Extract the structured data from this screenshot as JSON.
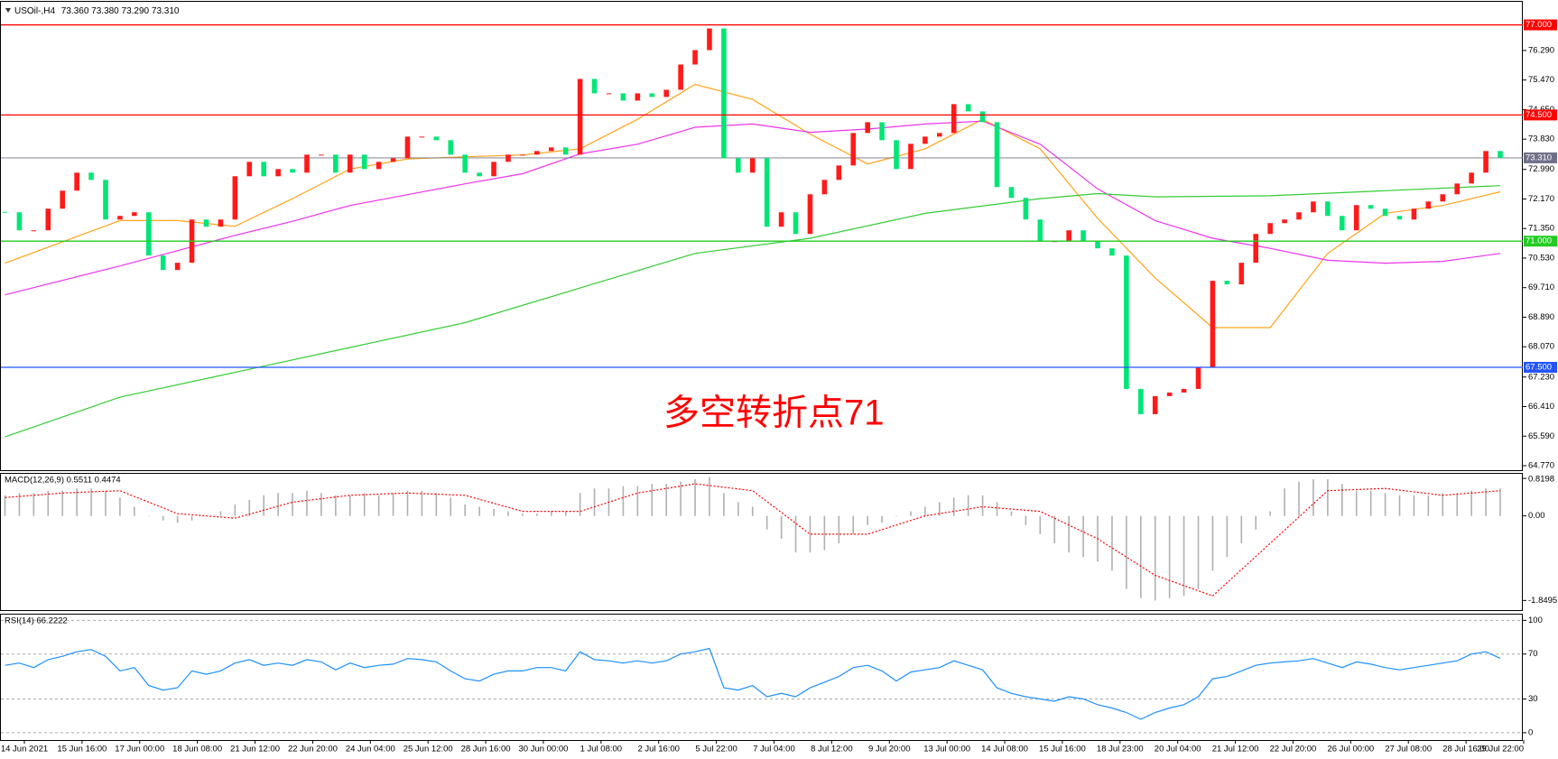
{
  "header": {
    "symbol": "USOil-,H4",
    "ohlc": "73.360 73.380 73.290 73.310"
  },
  "chart_data": [
    {
      "type": "candlestick",
      "up_color": "#ff1a1a",
      "down_color": "#00e676",
      "close": [
        71.8,
        71.3,
        71.3,
        71.9,
        72.4,
        72.9,
        72.7,
        71.6,
        71.7,
        71.8,
        70.6,
        70.2,
        70.4,
        71.6,
        71.4,
        71.6,
        72.8,
        73.2,
        72.8,
        73.0,
        72.9,
        73.4,
        73.4,
        72.9,
        73.4,
        73.0,
        73.2,
        73.3,
        73.9,
        73.9,
        73.8,
        73.4,
        72.9,
        72.8,
        73.2,
        73.4,
        73.4,
        73.5,
        73.6,
        73.4,
        75.5,
        75.1,
        75.1,
        74.9,
        75.1,
        75.0,
        75.2,
        75.9,
        76.3,
        76.9,
        73.3,
        72.9,
        73.3,
        71.4,
        71.8,
        71.2,
        72.3,
        72.7,
        73.1,
        74.0,
        74.3,
        73.8,
        73.0,
        73.7,
        73.9,
        74.0,
        74.8,
        74.6,
        74.3,
        72.5,
        72.2,
        71.6,
        71.0,
        71.0,
        71.3,
        71.0,
        70.8,
        70.6,
        66.9,
        66.2,
        66.7,
        66.8,
        66.9,
        67.5,
        69.9,
        69.8,
        70.4,
        71.2,
        71.5,
        71.6,
        71.8,
        72.1,
        71.7,
        71.3,
        72.0,
        71.9,
        71.7,
        71.6,
        71.9,
        72.1,
        72.3,
        72.6,
        72.9,
        73.5,
        73.31
      ],
      "ylim": [
        64.645,
        77.64
      ],
      "yticks": [
        {
          "value": 76.29,
          "label": "76.290"
        },
        {
          "value": 75.47,
          "label": "75.470"
        },
        {
          "value": 74.65,
          "label": "74.650"
        },
        {
          "value": 73.83,
          "label": "73.830"
        },
        {
          "value": 72.99,
          "label": "72.990"
        },
        {
          "value": 72.17,
          "label": "72.170"
        },
        {
          "value": 71.35,
          "label": "71.350"
        },
        {
          "value": 70.53,
          "label": "70.530"
        },
        {
          "value": 69.71,
          "label": "69.710"
        },
        {
          "value": 68.89,
          "label": "68.890"
        },
        {
          "value": 68.07,
          "label": "68.070"
        },
        {
          "value": 67.23,
          "label": "67.230"
        },
        {
          "value": 66.41,
          "label": "66.410"
        },
        {
          "value": 65.59,
          "label": "65.590"
        },
        {
          "value": 64.77,
          "label": "64.770"
        }
      ],
      "levels": [
        {
          "value": 77,
          "label": "77.000",
          "color": "#ff0000"
        },
        {
          "value": 74.5,
          "label": "74.500",
          "color": "#ff0000"
        },
        {
          "value": 71,
          "label": "71.000",
          "color": "#22cc22"
        },
        {
          "value": 67.5,
          "label": "67.500",
          "color": "#2255ff"
        }
      ],
      "last_price": {
        "value": 73.31,
        "label": "73.310",
        "color": "#707088"
      },
      "moving_averages": [
        {
          "color": "#ffa31a",
          "x": [
            0,
            8,
            12,
            16,
            20,
            24,
            28,
            32,
            36,
            40,
            44,
            48,
            52,
            56,
            60,
            64,
            68,
            72,
            76,
            80,
            84,
            88,
            92,
            96,
            100,
            104
          ],
          "values": [
            70.39,
            71.57,
            71.57,
            71.41,
            72.18,
            73.0,
            73.28,
            73.34,
            73.39,
            73.56,
            74.38,
            75.35,
            74.93,
            73.97,
            73.14,
            73.56,
            74.38,
            73.56,
            71.63,
            69.98,
            68.6,
            68.6,
            70.66,
            71.77,
            71.99,
            72.37
          ]
        },
        {
          "color": "#ee33ee",
          "x": [
            0,
            8,
            16,
            20,
            24,
            28,
            32,
            36,
            40,
            44,
            48,
            52,
            56,
            60,
            64,
            68,
            72,
            76,
            80,
            84,
            88,
            92,
            96,
            100,
            104
          ],
          "values": [
            69.51,
            70.31,
            71.16,
            71.55,
            71.99,
            72.29,
            72.59,
            72.87,
            73.42,
            73.69,
            74.16,
            74.25,
            74.02,
            74.11,
            74.25,
            74.33,
            73.69,
            72.45,
            71.57,
            71.08,
            70.8,
            70.47,
            70.39,
            70.44,
            70.66
          ]
        },
        {
          "color": "#33cc33",
          "x": [
            0,
            8,
            16,
            24,
            32,
            40,
            48,
            56,
            64,
            72,
            76,
            80,
            88,
            96,
            104
          ],
          "values": [
            65.57,
            66.67,
            67.36,
            68.05,
            68.74,
            69.7,
            70.66,
            71.08,
            71.77,
            72.18,
            72.32,
            72.23,
            72.26,
            72.4,
            72.54
          ]
        }
      ],
      "annotation": {
        "text": "多空转折点71",
        "color": "#ff0000"
      }
    },
    {
      "type": "macd",
      "title": "MACD(12,26,9) 0.5511 0.4474",
      "color": "#b0b0b0",
      "values": [
        0.45,
        0.5,
        0.5,
        0.55,
        0.55,
        0.6,
        0.6,
        0.55,
        0.4,
        0.2,
        0.0,
        -0.1,
        -0.15,
        -0.1,
        0.0,
        0.1,
        0.25,
        0.35,
        0.45,
        0.5,
        0.5,
        0.55,
        0.5,
        0.45,
        0.45,
        0.5,
        0.45,
        0.5,
        0.55,
        0.55,
        0.5,
        0.4,
        0.25,
        0.2,
        0.15,
        0.1,
        0.05,
        0.05,
        0.1,
        0.1,
        0.5,
        0.6,
        0.6,
        0.65,
        0.65,
        0.7,
        0.7,
        0.75,
        0.8,
        0.85,
        0.5,
        0.3,
        0.2,
        -0.3,
        -0.5,
        -0.8,
        -0.8,
        -0.75,
        -0.6,
        -0.4,
        -0.2,
        -0.15,
        0.0,
        0.1,
        0.2,
        0.3,
        0.4,
        0.45,
        0.45,
        0.3,
        0.1,
        -0.2,
        -0.4,
        -0.6,
        -0.8,
        -0.9,
        -1.0,
        -1.2,
        -1.6,
        -1.8,
        -1.85,
        -1.8,
        -1.75,
        -1.6,
        -1.2,
        -0.9,
        -0.6,
        -0.3,
        0.1,
        0.6,
        0.75,
        0.8,
        0.8,
        0.7,
        0.55,
        0.55,
        0.5,
        0.45,
        0.45,
        0.45,
        0.5,
        0.5,
        0.55,
        0.6,
        0.6
      ],
      "signal": {
        "color": "#ff0000",
        "x": [
          0,
          4,
          8,
          12,
          16,
          20,
          24,
          28,
          32,
          36,
          40,
          44,
          48,
          52,
          56,
          60,
          64,
          68,
          72,
          76,
          80,
          84,
          88,
          92,
          96,
          100,
          104
        ],
        "values": [
          0.4,
          0.5,
          0.55,
          0.05,
          -0.05,
          0.3,
          0.45,
          0.5,
          0.45,
          0.1,
          0.1,
          0.5,
          0.7,
          0.55,
          -0.4,
          -0.4,
          0.0,
          0.2,
          0.1,
          -0.5,
          -1.3,
          -1.75,
          -0.6,
          0.55,
          0.6,
          0.45,
          0.55
        ]
      },
      "ylim": [
        -2.06,
        0.92
      ],
      "yticks": [
        0.8198,
        {
          "value": 0,
          "label": "0.00"
        },
        -1.8495
      ]
    },
    {
      "type": "line",
      "title": "RSI(14) 66.2222",
      "color": "#1e90ff",
      "values": [
        60,
        62,
        58,
        65,
        68,
        72,
        74,
        68,
        55,
        58,
        42,
        38,
        40,
        55,
        52,
        55,
        62,
        65,
        60,
        62,
        60,
        65,
        63,
        56,
        62,
        58,
        60,
        61,
        66,
        65,
        63,
        55,
        48,
        46,
        52,
        55,
        55,
        58,
        58,
        55,
        72,
        65,
        64,
        62,
        64,
        62,
        64,
        70,
        72,
        75,
        40,
        38,
        42,
        32,
        35,
        32,
        40,
        45,
        50,
        58,
        60,
        55,
        46,
        54,
        56,
        58,
        64,
        60,
        56,
        40,
        35,
        32,
        30,
        28,
        32,
        30,
        25,
        22,
        18,
        12,
        18,
        22,
        25,
        32,
        48,
        50,
        55,
        60,
        62,
        63,
        64,
        66,
        62,
        58,
        63,
        61,
        58,
        56,
        58,
        60,
        62,
        64,
        70,
        72,
        66.22
      ],
      "ylim": [
        -6.5,
        105.1
      ],
      "yticks": [
        100,
        70,
        30,
        0
      ],
      "dashed_grid": true
    }
  ],
  "time_axis": {
    "labels": [
      "14 Jun 2021",
      "15 Jun 16:00",
      "17 Jun 00:00",
      "18 Jun 08:00",
      "21 Jun 12:00",
      "22 Jun 20:00",
      "24 Jun 04:00",
      "25 Jun 12:00",
      "28 Jun 16:00",
      "30 Jun 00:00",
      "1 Jul 08:00",
      "2 Jul 16:00",
      "5 Jul 22:00",
      "7 Jul 04:00",
      "8 Jul 12:00",
      "9 Jul 20:00",
      "13 Jul 00:00",
      "14 Jul 08:00",
      "15 Jul 16:00",
      "18 Jul 23:00",
      "20 Jul 04:00",
      "21 Jul 12:00",
      "22 Jul 20:00",
      "26 Jul 00:00",
      "27 Jul 08:00",
      "28 Jul 16:00",
      "29 Jul 22:00"
    ]
  }
}
